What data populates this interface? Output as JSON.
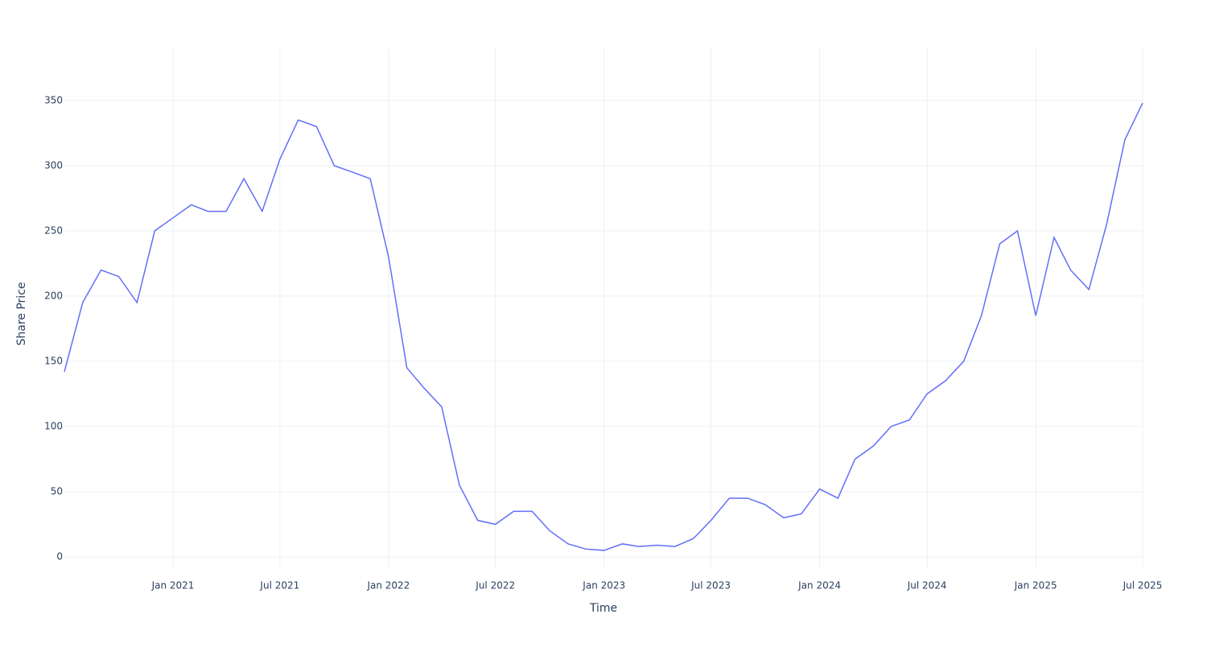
{
  "chart_data": {
    "type": "line",
    "x_label": "Time",
    "y_label": "Share Price",
    "x": [
      "2020-07",
      "2020-08",
      "2020-09",
      "2020-10",
      "2020-11",
      "2020-12",
      "2021-01",
      "2021-02",
      "2021-03",
      "2021-04",
      "2021-05",
      "2021-06",
      "2021-07",
      "2021-08",
      "2021-09",
      "2021-10",
      "2021-11",
      "2021-12",
      "2022-01",
      "2022-02",
      "2022-03",
      "2022-04",
      "2022-05",
      "2022-06",
      "2022-07",
      "2022-08",
      "2022-09",
      "2022-10",
      "2022-11",
      "2022-12",
      "2023-01",
      "2023-02",
      "2023-03",
      "2023-04",
      "2023-05",
      "2023-06",
      "2023-07",
      "2023-08",
      "2023-09",
      "2023-10",
      "2023-11",
      "2023-12",
      "2024-01",
      "2024-02",
      "2024-03",
      "2024-04",
      "2024-05",
      "2024-06",
      "2024-07",
      "2024-08",
      "2024-09",
      "2024-10",
      "2024-11",
      "2024-12",
      "2025-01",
      "2025-02",
      "2025-03",
      "2025-04",
      "2025-05",
      "2025-06",
      "2025-07"
    ],
    "series": [
      {
        "name": "Share Price",
        "color": "#636efa",
        "values": [
          142,
          195,
          220,
          215,
          195,
          250,
          260,
          270,
          265,
          265,
          290,
          265,
          305,
          335,
          330,
          300,
          295,
          290,
          230,
          145,
          130,
          115,
          55,
          28,
          25,
          35,
          35,
          20,
          10,
          6,
          5,
          10,
          8,
          9,
          8,
          14,
          28,
          45,
          45,
          40,
          30,
          33,
          52,
          45,
          75,
          85,
          100,
          105,
          125,
          135,
          150,
          185,
          240,
          250,
          185,
          245,
          220,
          205,
          255,
          320,
          348
        ]
      }
    ],
    "xlim": [
      "2020-07",
      "2025-07"
    ],
    "ylim": [
      -8,
      390
    ],
    "xticks": [
      {
        "value": "2021-01",
        "label": "Jan 2021"
      },
      {
        "value": "2021-07",
        "label": "Jul 2021"
      },
      {
        "value": "2022-01",
        "label": "Jan 2022"
      },
      {
        "value": "2022-07",
        "label": "Jul 2022"
      },
      {
        "value": "2023-01",
        "label": "Jan 2023"
      },
      {
        "value": "2023-07",
        "label": "Jul 2023"
      },
      {
        "value": "2024-01",
        "label": "Jan 2024"
      },
      {
        "value": "2024-07",
        "label": "Jul 2024"
      },
      {
        "value": "2025-01",
        "label": "Jan 2025"
      },
      {
        "value": "2025-07",
        "label": "Jul 2025"
      }
    ],
    "yticks": [
      0,
      50,
      100,
      150,
      200,
      250,
      300,
      350
    ],
    "grid": true
  }
}
